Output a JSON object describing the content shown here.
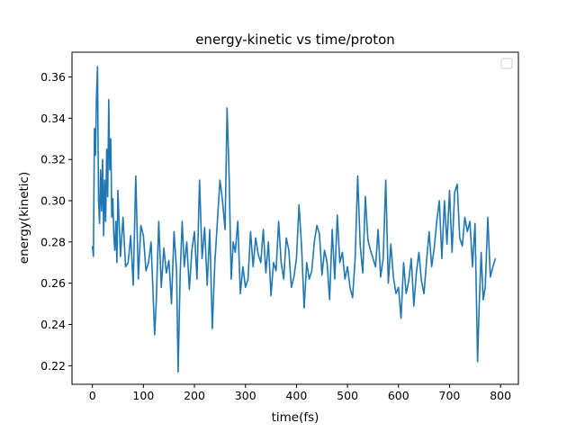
{
  "chart_data": {
    "type": "line",
    "title": "energy-kinetic vs time/proton",
    "xlabel": "time(fs)",
    "ylabel": "energy(kinetic)",
    "xlim": [
      -40,
      835
    ],
    "ylim": [
      0.211,
      0.372
    ],
    "xticks": [
      0,
      100,
      200,
      300,
      400,
      500,
      600,
      700,
      800
    ],
    "yticks": [
      0.22,
      0.24,
      0.26,
      0.28,
      0.3,
      0.32,
      0.34,
      0.36
    ],
    "ytick_labels": [
      "0.22",
      "0.24",
      "0.26",
      "0.28",
      "0.30",
      "0.32",
      "0.34",
      "0.36"
    ],
    "grid": false,
    "legend": "top-right",
    "series": [
      {
        "color": "#1f77b4",
        "x": [
          0,
          2,
          4,
          6,
          8,
          10,
          12,
          14,
          16,
          18,
          20,
          22,
          24,
          26,
          28,
          30,
          32,
          34,
          36,
          38,
          40,
          42,
          44,
          46,
          48,
          50,
          55,
          60,
          65,
          70,
          75,
          80,
          85,
          90,
          95,
          100,
          105,
          110,
          115,
          120,
          122,
          125,
          130,
          135,
          140,
          145,
          150,
          155,
          160,
          165,
          168,
          172,
          176,
          180,
          185,
          190,
          195,
          200,
          205,
          210,
          215,
          220,
          225,
          230,
          235,
          240,
          245,
          250,
          255,
          260,
          264,
          268,
          272,
          276,
          280,
          285,
          290,
          295,
          300,
          305,
          310,
          315,
          320,
          325,
          330,
          335,
          340,
          345,
          350,
          355,
          360,
          365,
          370,
          375,
          380,
          385,
          390,
          395,
          400,
          405,
          410,
          415,
          420,
          425,
          430,
          435,
          440,
          445,
          450,
          455,
          460,
          465,
          470,
          475,
          480,
          485,
          490,
          495,
          500,
          505,
          510,
          515,
          520,
          525,
          530,
          535,
          540,
          545,
          550,
          555,
          560,
          565,
          570,
          575,
          580,
          585,
          590,
          595,
          600,
          605,
          610,
          615,
          620,
          625,
          630,
          635,
          640,
          645,
          650,
          655,
          660,
          665,
          670,
          675,
          680,
          685,
          690,
          695,
          700,
          705,
          710,
          715,
          720,
          725,
          730,
          735,
          740,
          745,
          750,
          755,
          758,
          762,
          766,
          770,
          775,
          780,
          785,
          790
        ],
        "y": [
          0.278,
          0.273,
          0.335,
          0.322,
          0.35,
          0.365,
          0.3,
          0.289,
          0.315,
          0.295,
          0.32,
          0.283,
          0.31,
          0.29,
          0.325,
          0.302,
          0.349,
          0.315,
          0.33,
          0.292,
          0.301,
          0.283,
          0.276,
          0.29,
          0.27,
          0.305,
          0.273,
          0.292,
          0.268,
          0.27,
          0.283,
          0.259,
          0.312,
          0.262,
          0.288,
          0.283,
          0.266,
          0.27,
          0.28,
          0.248,
          0.235,
          0.25,
          0.29,
          0.258,
          0.277,
          0.265,
          0.271,
          0.25,
          0.285,
          0.266,
          0.217,
          0.264,
          0.29,
          0.268,
          0.28,
          0.257,
          0.276,
          0.285,
          0.262,
          0.31,
          0.272,
          0.287,
          0.259,
          0.286,
          0.238,
          0.27,
          0.29,
          0.31,
          0.3,
          0.286,
          0.345,
          0.312,
          0.262,
          0.28,
          0.275,
          0.29,
          0.255,
          0.268,
          0.258,
          0.262,
          0.285,
          0.268,
          0.282,
          0.274,
          0.27,
          0.286,
          0.265,
          0.28,
          0.254,
          0.27,
          0.266,
          0.29,
          0.27,
          0.262,
          0.282,
          0.276,
          0.258,
          0.263,
          0.272,
          0.298,
          0.278,
          0.248,
          0.27,
          0.262,
          0.266,
          0.28,
          0.288,
          0.284,
          0.264,
          0.276,
          0.27,
          0.252,
          0.286,
          0.262,
          0.293,
          0.27,
          0.275,
          0.262,
          0.268,
          0.258,
          0.253,
          0.272,
          0.312,
          0.278,
          0.265,
          0.302,
          0.281,
          0.276,
          0.272,
          0.268,
          0.286,
          0.263,
          0.272,
          0.31,
          0.26,
          0.279,
          0.263,
          0.255,
          0.258,
          0.243,
          0.27,
          0.255,
          0.261,
          0.272,
          0.249,
          0.265,
          0.275,
          0.261,
          0.255,
          0.271,
          0.285,
          0.268,
          0.277,
          0.29,
          0.3,
          0.272,
          0.3,
          0.279,
          0.305,
          0.275,
          0.304,
          0.308,
          0.282,
          0.278,
          0.292,
          0.285,
          0.29,
          0.268,
          0.289,
          0.222,
          0.248,
          0.275,
          0.252,
          0.258,
          0.292,
          0.263,
          0.268,
          0.272
        ]
      }
    ]
  }
}
